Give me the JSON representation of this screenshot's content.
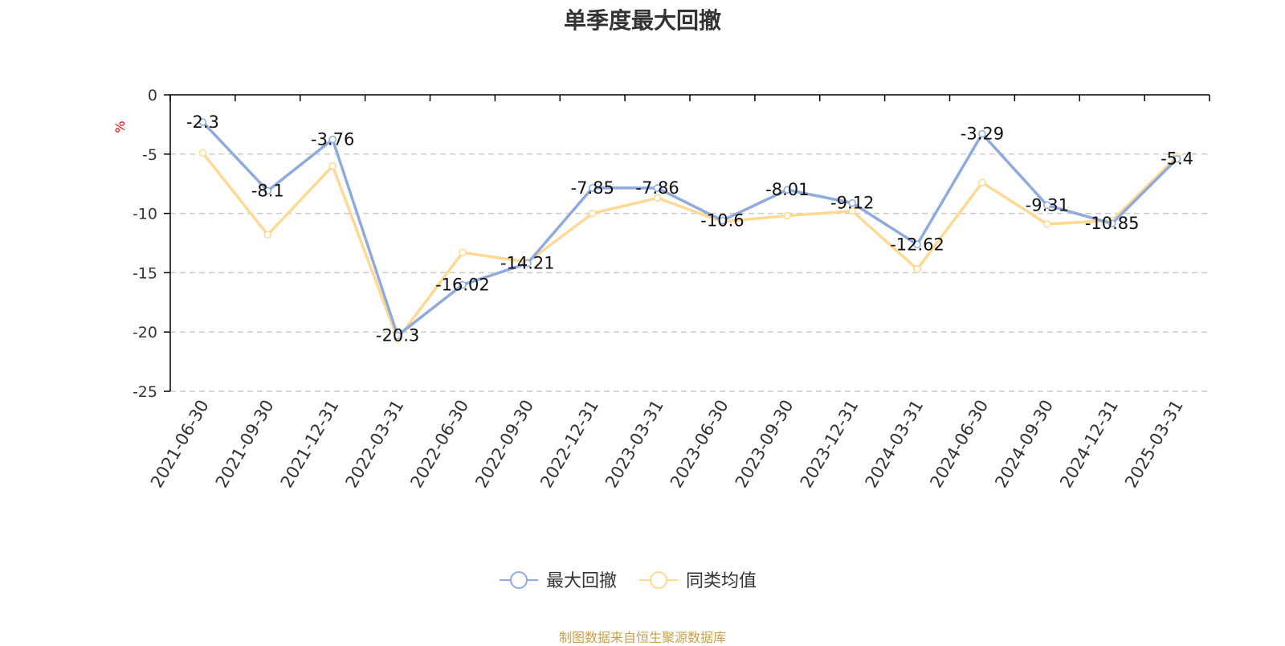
{
  "chart_data": {
    "type": "line",
    "title": "单季度最大回撤",
    "ylabel": "%",
    "ylim": [
      -25,
      0
    ],
    "yticks": [
      0,
      -5,
      -10,
      -15,
      -20,
      -25
    ],
    "grid": true,
    "legend_position": "bottom",
    "categories": [
      "2021-06-30",
      "2021-09-30",
      "2021-12-31",
      "2022-03-31",
      "2022-06-30",
      "2022-09-30",
      "2022-12-31",
      "2023-03-31",
      "2023-06-30",
      "2023-09-30",
      "2023-12-31",
      "2024-03-31",
      "2024-06-30",
      "2024-09-30",
      "2024-12-31",
      "2025-03-31"
    ],
    "series": [
      {
        "name": "最大回撤",
        "color": "#8faadc",
        "show_labels": true,
        "values": [
          -2.3,
          -8.1,
          -3.76,
          -20.3,
          -16.02,
          -14.21,
          -7.85,
          -7.86,
          -10.6,
          -8.01,
          -9.12,
          -12.62,
          -3.29,
          -9.31,
          -10.85,
          -5.4
        ]
      },
      {
        "name": "同类均值",
        "color": "#ffd993",
        "show_labels": false,
        "values": [
          -4.9,
          -11.8,
          -6.0,
          -20.6,
          -13.3,
          -14.1,
          -10.0,
          -8.7,
          -10.7,
          -10.2,
          -9.8,
          -14.7,
          -7.4,
          -10.9,
          -10.6,
          -5.2
        ]
      }
    ]
  },
  "source_note": "制图数据来自恒生聚源数据库",
  "colors": {
    "axis": "#000000",
    "grid": "#cccccc",
    "ylabel": "#ff0000",
    "source_note": "#c8a14a"
  }
}
